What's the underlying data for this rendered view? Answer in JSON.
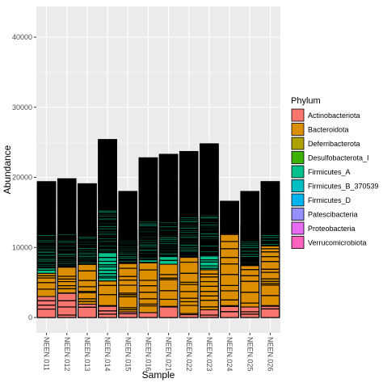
{
  "chart_data": {
    "type": "bar",
    "stacked": true,
    "xlabel": "Sample",
    "ylabel": "Abundance",
    "ylim": [
      0,
      43000
    ],
    "y_ticks": [
      0,
      10000,
      20000,
      30000,
      40000
    ],
    "y_tick_labels": [
      "0",
      "10000",
      "20000",
      "30000",
      "40000"
    ],
    "grid": true,
    "legend_position": "right",
    "legend_title": "Phylum",
    "categories": [
      "NEEN.011",
      "NEEN.012",
      "NEEN.013",
      "NEEN.014",
      "NEEN.015",
      "NEEN.016",
      "NEEN.021",
      "NEEN.022",
      "NEEN.023",
      "NEEN.024",
      "NEEN.025",
      "NEEN.026"
    ],
    "colors": {
      "Actinobacteriota": "#F8766D",
      "Bacteroidota": "#DB8E00",
      "Deferribacterota": "#AEA200",
      "Desulfobacterota_I": "#3CB300",
      "Firmicutes_A": "#00C08B",
      "Firmicutes_B_370539": "#00BFC4",
      "Firmicutes_D": "#00B4F0",
      "Patescibacteria": "#9590FF",
      "Proteobacteria": "#E76BF3",
      "Verrucomicrobiota": "#FF62BC",
      "taxon_border": "#000000",
      "panel_bg": "#EBEBEB",
      "grid_major": "#FFFFFF"
    },
    "series": [
      {
        "name": "Firmicutes_D",
        "values": [
          12600,
          11800,
          12700,
          10000,
          12500,
          8000,
          8200,
          8200,
          7700,
          10600,
          13200,
          10600
        ]
      },
      {
        "name": "Proteobacteria",
        "values": [
          0,
          0,
          0,
          0,
          0,
          0,
          400,
          0,
          0,
          0,
          0,
          0
        ]
      },
      {
        "name": "Firmicutes_A",
        "values": [
          19400,
          19800,
          19100,
          25400,
          18000,
          22800,
          23300,
          23700,
          24800,
          16600,
          18000,
          19400
        ]
      },
      {
        "name": "Desulfobacterota_I",
        "values": [
          800,
          0,
          600,
          0,
          0,
          700,
          300,
          0,
          0,
          0,
          0,
          0
        ]
      },
      {
        "name": "Bacteroidota",
        "values": [
          6300,
          7200,
          7600,
          5200,
          7700,
          7800,
          7600,
          8600,
          6800,
          12000,
          7400,
          10200
        ]
      },
      {
        "name": "Actinobacteriota",
        "values": [
          3000,
          3500,
          1900,
          1600,
          800,
          700,
          1500,
          400,
          1100,
          1700,
          1500,
          1600
        ]
      }
    ],
    "phylum_legend": [
      "Actinobacteriota",
      "Bacteroidota",
      "Deferribacterota",
      "Desulfobacterota_I",
      "Firmicutes_A",
      "Firmicutes_B_370539",
      "Firmicutes_D",
      "Patescibacteria",
      "Proteobacteria",
      "Verrucomicrobiota"
    ],
    "phylum_legend_labels": [
      "Actinobacteriota",
      "Bacteroidota",
      "Deferribacterota",
      "Desulfobacterota_I",
      "Firmicutes_A",
      "Firmicutes_B_370539",
      "Firmicutes_D",
      "Patescibacteria",
      "Proteobacteria",
      "Verrucomicrobiota"
    ]
  }
}
